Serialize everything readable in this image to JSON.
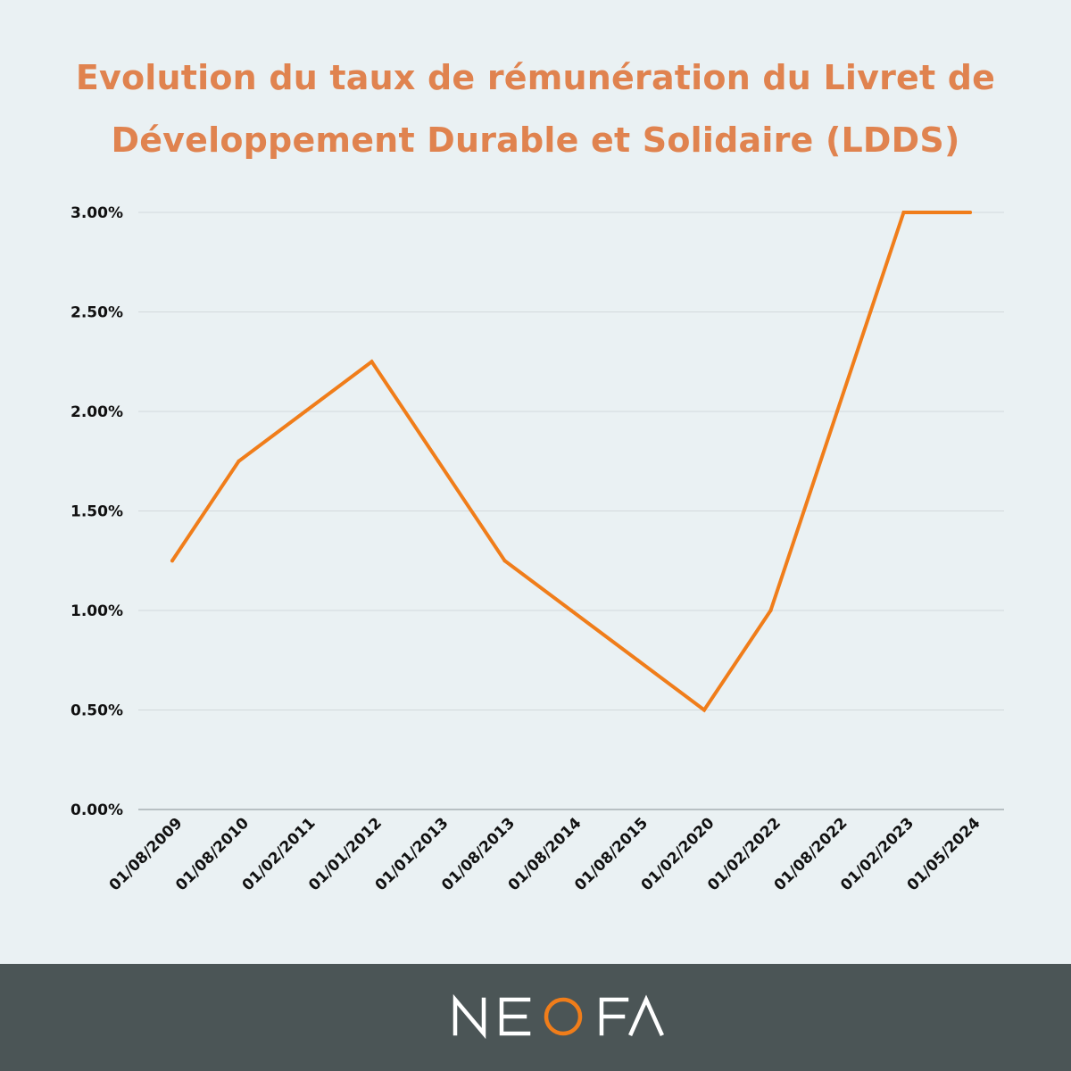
{
  "title": {
    "line1": "Evolution du taux de rémunération du Livret de",
    "line2": "Développement Durable et Solidaire (LDDS)"
  },
  "colors": {
    "background": "#eaf1f3",
    "title": "#e0834f",
    "line": "#f07d1a",
    "grid": "#d3d9dc",
    "footer": "#4b5556",
    "logo": "#ffffff",
    "logo_accent": "#f07d1a"
  },
  "brand": {
    "logo_text": "NEOFA",
    "icon": "neofa-logo"
  },
  "chart_data": {
    "type": "line",
    "title": "Evolution du taux de rémunération du Livret de Développement Durable et Solidaire (LDDS)",
    "xlabel": "",
    "ylabel": "",
    "x": [
      "01/08/2009",
      "01/08/2010",
      "01/02/2011",
      "01/01/2012",
      "01/01/2013",
      "01/08/2013",
      "01/08/2014",
      "01/08/2015",
      "01/02/2020",
      "01/02/2022",
      "01/08/2022",
      "01/02/2023",
      "01/05/2024"
    ],
    "series": [
      {
        "name": "",
        "values": [
          1.25,
          1.75,
          2.0,
          2.25,
          1.75,
          1.25,
          1.0,
          0.75,
          0.5,
          1.0,
          2.0,
          3.0,
          3.0
        ]
      }
    ],
    "ylim": [
      0,
      3
    ],
    "yticks": [
      0,
      0.5,
      1,
      1.5,
      2,
      2.5,
      3
    ],
    "ytick_labels": [
      "0.00%",
      "0.50%",
      "1.00%",
      "1.50%",
      "2.00%",
      "2.50%",
      "3.00%"
    ],
    "grid": "horizontal",
    "legend": "none"
  }
}
